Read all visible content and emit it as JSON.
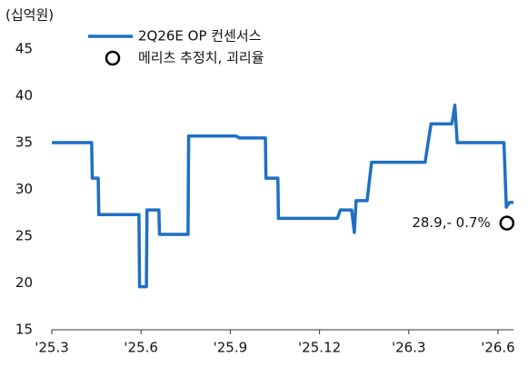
{
  "chart_data": {
    "type": "line",
    "unit_label": "(십억원)",
    "xticks": [
      {
        "value": 0,
        "label": "'25.3"
      },
      {
        "value": 3,
        "label": "'25.6"
      },
      {
        "value": 6,
        "label": "'25.9"
      },
      {
        "value": 9,
        "label": "'25.12"
      },
      {
        "value": 12,
        "label": "'26.3"
      },
      {
        "value": 15,
        "label": "'26.6"
      }
    ],
    "xlim": [
      0,
      15.52
    ],
    "ylim": [
      15,
      45
    ],
    "yticks": [
      15,
      20,
      25,
      30,
      35,
      40,
      45
    ],
    "series": [
      {
        "name": "2Q26E OP 컨센서스",
        "color": "#1f6fc4",
        "kind": "line",
        "x": [
          0,
          1.34,
          1.36,
          1.56,
          1.58,
          2.93,
          2.95,
          3.18,
          3.2,
          3.6,
          3.62,
          4.58,
          4.6,
          6.2,
          6.3,
          7.18,
          7.2,
          7.6,
          7.62,
          9.6,
          9.7,
          10.08,
          10.17,
          10.23,
          10.6,
          10.68,
          10.75,
          12.55,
          12.65,
          12.75,
          13.45,
          13.55,
          13.63,
          15.2,
          15.28,
          15.38,
          15.52
        ],
        "values": [
          35,
          35,
          31.2,
          31.2,
          27.3,
          27.3,
          19.6,
          19.6,
          27.8,
          27.8,
          25.2,
          25.2,
          35.7,
          35.7,
          35.5,
          35.5,
          31.2,
          31.2,
          26.9,
          26.9,
          27.8,
          27.8,
          25.4,
          28.8,
          28.8,
          31,
          32.9,
          32.9,
          35,
          37,
          37,
          39,
          35,
          35,
          28.1,
          28.6,
          28.6
        ]
      },
      {
        "name": "메리츠 추정치, 괴리율",
        "color": "#000000",
        "kind": "circle",
        "x": [
          15.3
        ],
        "values": [
          26.4
        ]
      }
    ],
    "annotations": [
      {
        "text": "28.9,- 0.7%",
        "x": 15.3,
        "y": 26.4
      }
    ]
  }
}
